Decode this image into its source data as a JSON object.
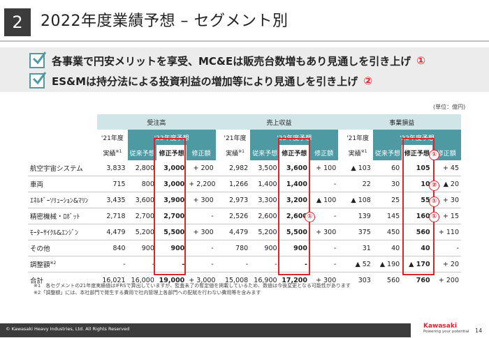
{
  "header": {
    "number": "2",
    "title": "2022年度業績予想 – セグメント別"
  },
  "summary": [
    {
      "text": "各事業で円安メリットを享受、MC&Eは販売台数増もあり見通しを引き上げ",
      "mark": "①"
    },
    {
      "text": "ES&Mは持分法による投資利益の増加等により見通しを引き上げ",
      "mark": "②"
    }
  ],
  "unit": "(単位：億円)",
  "table": {
    "groups": [
      "受注高",
      "売上収益",
      "事業損益"
    ],
    "fy21_top": "'21年度",
    "fy21_bottom": "実績",
    "note_mark": "※1",
    "fy22": "'22年度予想",
    "cols": [
      "従来予想",
      "修正予想",
      "修正額"
    ],
    "rows": [
      {
        "seg": "航空宇宙システム",
        "note": "",
        "v": [
          "3,833",
          "2,800",
          "3,000",
          "+ 200",
          "2,982",
          "3,500",
          "3,600",
          "+ 100",
          "▲ 103",
          "60",
          "105",
          "+ 45"
        ]
      },
      {
        "seg": "車両",
        "note": "",
        "v": [
          "715",
          "800",
          "3,000",
          "+ 2,200",
          "1,266",
          "1,400",
          "1,400",
          "-",
          "22",
          "30",
          "10",
          "▲ 20"
        ]
      },
      {
        "seg": "ｴﾈﾙｷﾞｰｿﾘｭｰｼｮﾝ&ﾏﾘﾝ",
        "note": "",
        "v": [
          "3,435",
          "3,600",
          "3,900",
          "+ 300",
          "2,973",
          "3,300",
          "3,200",
          "▲ 100",
          "▲ 108",
          "25",
          "55",
          "+ 30"
        ]
      },
      {
        "seg": "精密機械・ﾛﾎﾞｯﾄ",
        "note": "",
        "v": [
          "2,718",
          "2,700",
          "2,700",
          "-",
          "2,526",
          "2,600",
          "2,600",
          "-",
          "139",
          "145",
          "160",
          "+ 15"
        ]
      },
      {
        "seg": "ﾓｰﾀｰｻｲｸﾙ&ｴﾝｼﾞﾝ",
        "note": "",
        "v": [
          "4,479",
          "5,200",
          "5,500",
          "+ 300",
          "4,479",
          "5,200",
          "5,500",
          "+ 300",
          "375",
          "450",
          "560",
          "+ 110"
        ]
      },
      {
        "seg": "その他",
        "note": "",
        "v": [
          "840",
          "900",
          "900",
          "-",
          "780",
          "900",
          "900",
          "-",
          "31",
          "40",
          "40",
          "-"
        ]
      },
      {
        "seg": "調整額",
        "note": "※2",
        "v": [
          "-",
          "-",
          "-",
          "-",
          "-",
          "-",
          "-",
          "-",
          "▲ 52",
          "▲ 190",
          "▲ 170",
          "+ 20"
        ]
      }
    ],
    "total": {
      "seg": "合計",
      "v": [
        "16,021",
        "16,000",
        "19,000",
        "+ 3,000",
        "15,008",
        "16,900",
        "17,200",
        "+ 300",
        "303",
        "560",
        "760",
        "+ 200"
      ]
    }
  },
  "circle_marks": {
    "one": "①",
    "two": "②"
  },
  "notes": [
    "※1　各セグメントの21年度実績値はIFRSで算出していますが、監査未了の暫定値を掲載しているため、数値は今後変更となる可能性があります",
    "※2「調整額」には、本社部門で発生する費用で社内管理上各部門への配賦を行わない費用等を含みます"
  ],
  "footer": {
    "copyright": "© Kawasaki Heavy Industries, Ltd. All Rights Reserved",
    "brand": "Kawasaki",
    "tagline": "Powering your potential",
    "page": "14"
  },
  "colors": {
    "accent": "#4e9aa3",
    "highlight_border": "#d9262c",
    "dark": "#3c3c3c"
  }
}
